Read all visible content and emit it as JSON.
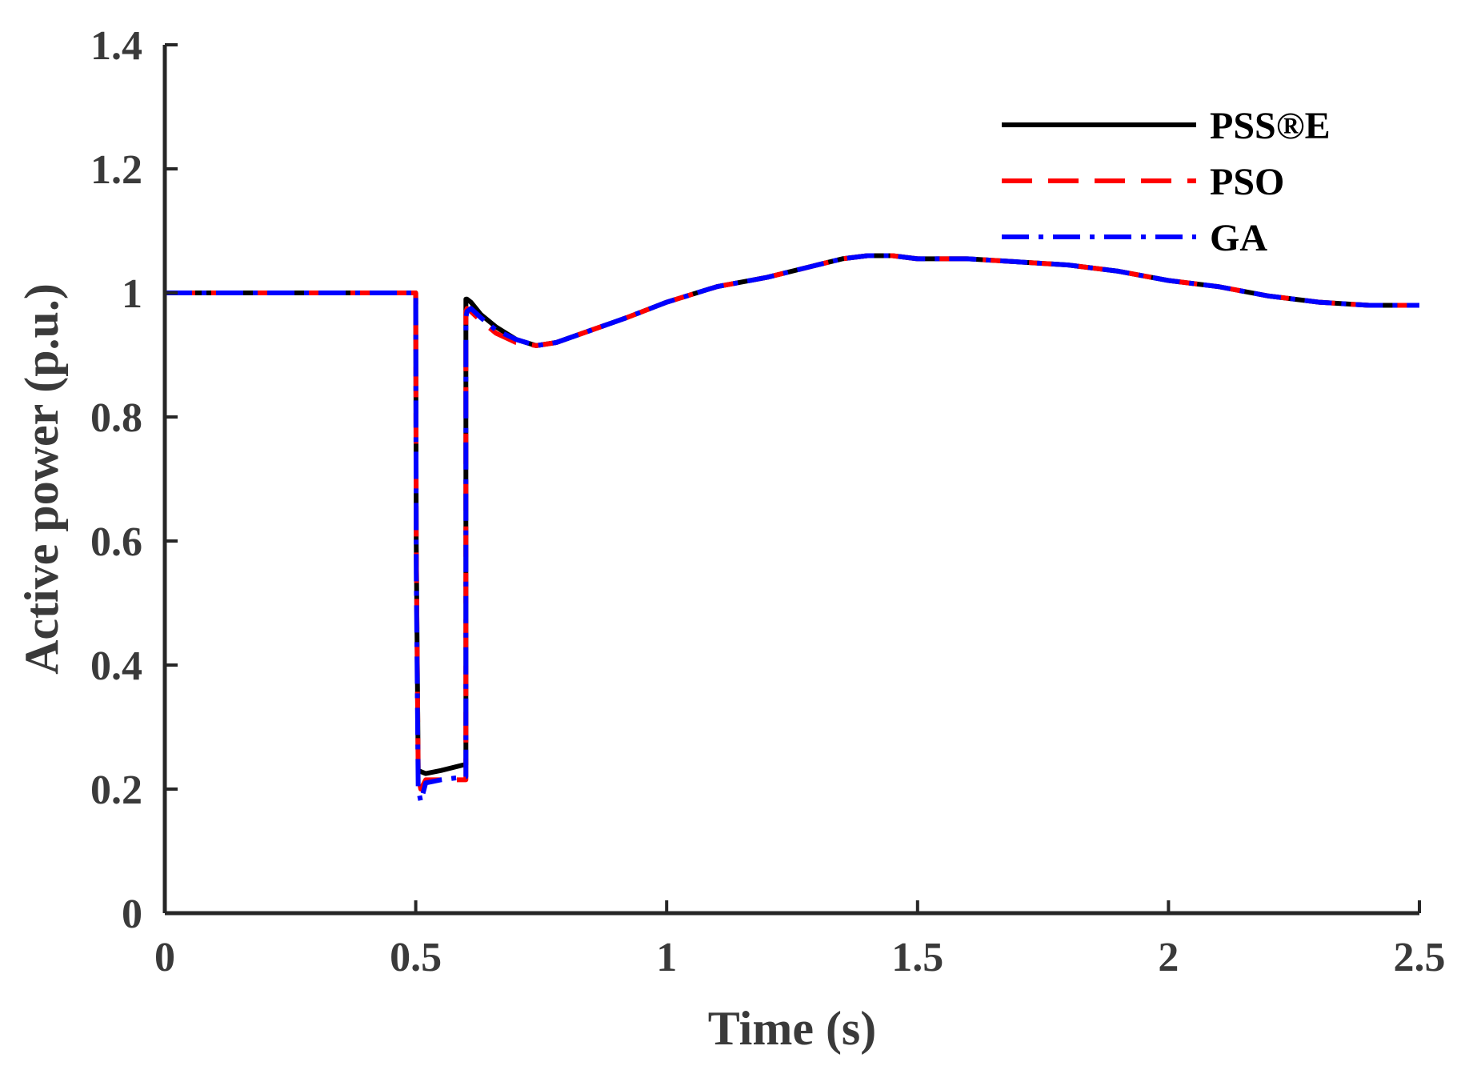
{
  "chart_data": {
    "type": "line",
    "title": "",
    "xlabel": "Time (s)",
    "ylabel": "Active power (p.u.)",
    "xlim": [
      0,
      2.5
    ],
    "ylim": [
      0,
      1.4
    ],
    "xticks": [
      {
        "value": 0,
        "label": "0"
      },
      {
        "value": 0.5,
        "label": "0.5"
      },
      {
        "value": 1,
        "label": "1"
      },
      {
        "value": 1.5,
        "label": "1.5"
      },
      {
        "value": 2,
        "label": "2"
      },
      {
        "value": 2.5,
        "label": "2.5"
      }
    ],
    "yticks": [
      {
        "value": 0,
        "label": "0"
      },
      {
        "value": 0.2,
        "label": "0.2"
      },
      {
        "value": 0.4,
        "label": "0.4"
      },
      {
        "value": 0.6,
        "label": "0.6"
      },
      {
        "value": 0.8,
        "label": "0.8"
      },
      {
        "value": 1,
        "label": "1"
      },
      {
        "value": 1.2,
        "label": "1.2"
      },
      {
        "value": 1.4,
        "label": "1.4"
      }
    ],
    "grid": false,
    "legend_position": "top-right",
    "series": [
      {
        "name": "PSS®E",
        "color": "#000000",
        "style": "solid",
        "x": [
          0,
          0.5,
          0.501,
          0.505,
          0.52,
          0.55,
          0.6,
          0.6,
          0.602,
          0.61,
          0.63,
          0.66,
          0.7,
          0.74,
          0.78,
          0.85,
          0.92,
          1.0,
          1.1,
          1.2,
          1.3,
          1.35,
          1.4,
          1.45,
          1.5,
          1.6,
          1.7,
          1.8,
          1.85,
          1.9,
          2.0,
          2.1,
          2.2,
          2.3,
          2.4,
          2.5
        ],
        "y": [
          1.0,
          1.0,
          0.6,
          0.23,
          0.225,
          0.23,
          0.24,
          0.99,
          0.99,
          0.985,
          0.965,
          0.945,
          0.925,
          0.915,
          0.92,
          0.94,
          0.96,
          0.985,
          1.01,
          1.025,
          1.045,
          1.055,
          1.06,
          1.06,
          1.055,
          1.055,
          1.05,
          1.045,
          1.04,
          1.035,
          1.02,
          1.01,
          0.995,
          0.985,
          0.98,
          0.98
        ]
      },
      {
        "name": "PSO",
        "color": "#ff0000",
        "style": "dashed",
        "x": [
          0,
          0.5,
          0.501,
          0.505,
          0.51,
          0.52,
          0.55,
          0.6,
          0.6,
          0.602,
          0.61,
          0.63,
          0.66,
          0.7,
          0.74,
          0.78,
          0.85,
          0.92,
          1.0,
          1.1,
          1.2,
          1.3,
          1.35,
          1.4,
          1.45,
          1.5,
          1.6,
          1.7,
          1.8,
          1.85,
          1.9,
          2.0,
          2.1,
          2.2,
          2.3,
          2.4,
          2.5
        ],
        "y": [
          1.0,
          1.0,
          0.6,
          0.22,
          0.2,
          0.215,
          0.215,
          0.215,
          0.97,
          0.975,
          0.97,
          0.955,
          0.935,
          0.92,
          0.915,
          0.92,
          0.94,
          0.96,
          0.985,
          1.01,
          1.025,
          1.045,
          1.055,
          1.06,
          1.06,
          1.055,
          1.055,
          1.05,
          1.045,
          1.04,
          1.035,
          1.02,
          1.01,
          0.995,
          0.985,
          0.98,
          0.98
        ]
      },
      {
        "name": "GA",
        "color": "#0000ff",
        "style": "dashdot",
        "x": [
          0,
          0.5,
          0.501,
          0.505,
          0.51,
          0.52,
          0.55,
          0.6,
          0.6,
          0.602,
          0.61,
          0.63,
          0.66,
          0.7,
          0.74,
          0.78,
          0.85,
          0.92,
          1.0,
          1.1,
          1.2,
          1.3,
          1.35,
          1.4,
          1.45,
          1.5,
          1.6,
          1.7,
          1.8,
          1.85,
          1.9,
          2.0,
          2.1,
          2.2,
          2.3,
          2.4,
          2.5
        ],
        "y": [
          1.0,
          1.0,
          0.55,
          0.2,
          0.18,
          0.21,
          0.215,
          0.22,
          0.96,
          0.97,
          0.975,
          0.96,
          0.94,
          0.925,
          0.915,
          0.92,
          0.94,
          0.96,
          0.985,
          1.01,
          1.025,
          1.045,
          1.055,
          1.06,
          1.06,
          1.055,
          1.055,
          1.05,
          1.045,
          1.04,
          1.035,
          1.02,
          1.01,
          0.995,
          0.985,
          0.98,
          0.98
        ]
      }
    ]
  }
}
